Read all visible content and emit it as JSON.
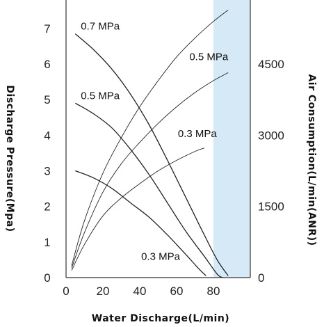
{
  "chart_data": {
    "type": "line",
    "title": "",
    "xlabel": "Water Discharge(L/min)",
    "ylabel": "Discharge Pressure(Mpa)",
    "y2label": "Air Consumption(L/min(ANR))",
    "xlim": [
      0,
      100
    ],
    "ylim": [
      0,
      7.8
    ],
    "y2lim": [
      0,
      5850
    ],
    "x_ticks": [
      0,
      20,
      40,
      60,
      80
    ],
    "y_ticks": [
      0,
      1,
      2,
      3,
      4,
      5,
      6,
      7
    ],
    "y2_ticks": [
      0,
      1500,
      3000,
      4500
    ],
    "shaded_region": {
      "x_from": 80,
      "x_to": 100,
      "color": "#d5e9f6"
    },
    "colors": {
      "curves": "#222222",
      "axis": "#333333",
      "shade": "#d5e9f6"
    },
    "series": [
      {
        "label": "0.7 MPa",
        "axis": "left",
        "kind": "discharge_pressure",
        "x": [
          5,
          15,
          25,
          35,
          45,
          55,
          65,
          75,
          82,
          88
        ],
        "y": [
          6.85,
          6.4,
          5.85,
          5.15,
          4.3,
          3.3,
          2.25,
          1.2,
          0.5,
          0.05
        ]
      },
      {
        "label": "0.5 MPa",
        "axis": "left",
        "kind": "discharge_pressure",
        "x": [
          5,
          15,
          25,
          35,
          45,
          55,
          65,
          75,
          82,
          85
        ],
        "y": [
          4.9,
          4.6,
          4.2,
          3.6,
          2.9,
          2.1,
          1.3,
          0.6,
          0.1,
          0
        ]
      },
      {
        "label": "0.3 MPa",
        "axis": "left",
        "kind": "discharge_pressure",
        "x": [
          5,
          15,
          25,
          35,
          45,
          55,
          65,
          72,
          76
        ],
        "y": [
          3.0,
          2.8,
          2.5,
          2.1,
          1.7,
          1.2,
          0.65,
          0.25,
          0.05
        ]
      },
      {
        "label": "0.7 MPa",
        "axis": "right",
        "kind": "air_consumption",
        "x": [
          3,
          10,
          20,
          30,
          40,
          50,
          60,
          70,
          80,
          88
        ],
        "y": [
          250,
          1200,
          2200,
          2950,
          3600,
          4150,
          4650,
          5050,
          5400,
          5640
        ]
      },
      {
        "label": "0.5 MPa",
        "axis": "right",
        "kind": "air_consumption",
        "x": [
          3,
          10,
          20,
          30,
          40,
          50,
          60,
          70,
          80,
          88
        ],
        "y": [
          200,
          950,
          1800,
          2400,
          2850,
          3250,
          3600,
          3900,
          4150,
          4320
        ]
      },
      {
        "label": "0.3 MPa",
        "axis": "right",
        "kind": "air_consumption",
        "x": [
          3,
          10,
          20,
          30,
          40,
          50,
          60,
          70,
          75
        ],
        "y": [
          150,
          700,
          1300,
          1680,
          1980,
          2250,
          2470,
          2660,
          2730
        ]
      }
    ]
  }
}
